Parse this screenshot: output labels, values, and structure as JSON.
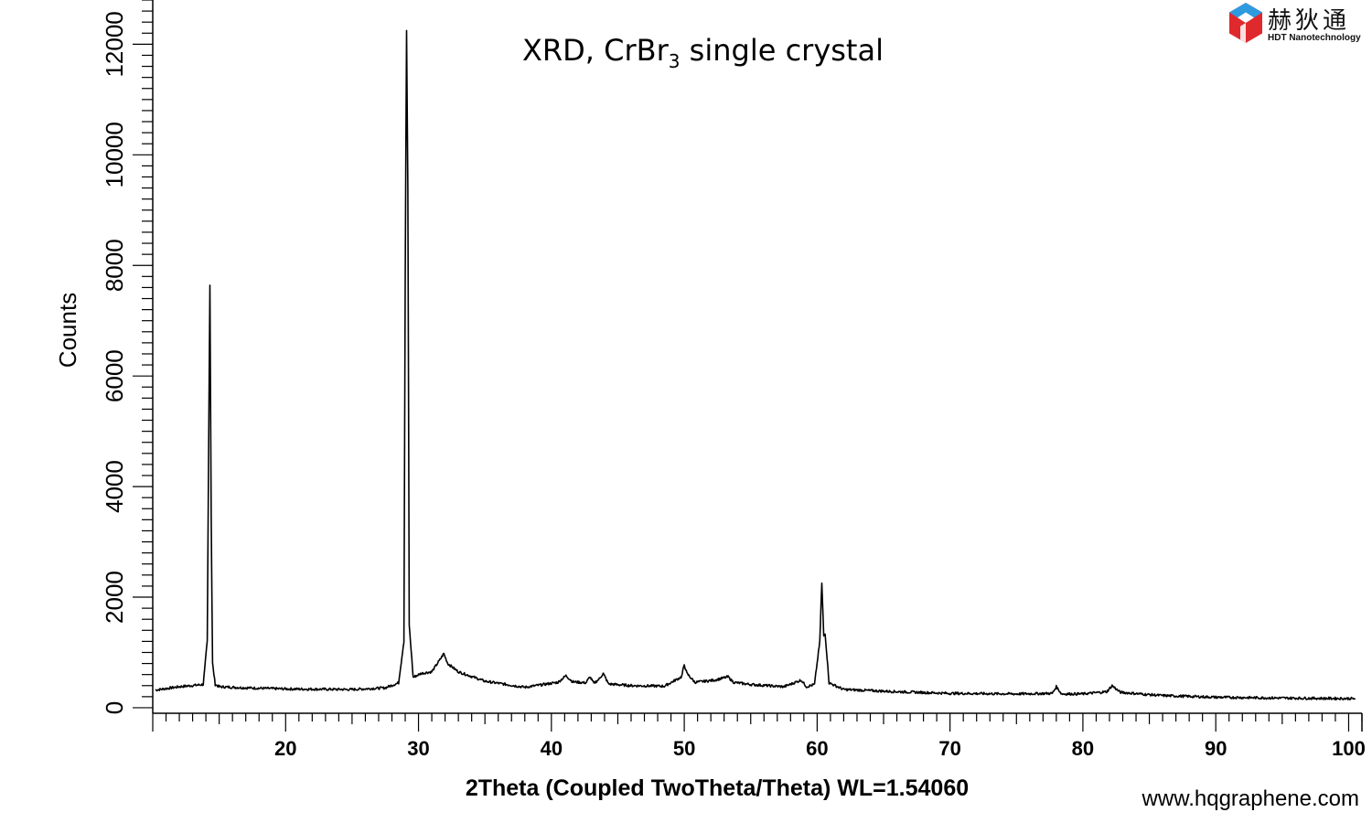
{
  "chart_data": {
    "type": "line",
    "title_main": "XRD, CrBr",
    "title_sub": "3",
    "title_rest": " single crystal",
    "xlabel": "2Theta (Coupled TwoTheta/Theta) WL=1.54060",
    "ylabel": "Counts",
    "xlim": [
      10,
      101
    ],
    "ylim": [
      -100,
      12800
    ],
    "x_ticks": [
      20,
      30,
      40,
      50,
      60,
      70,
      80,
      90,
      100
    ],
    "y_ticks": [
      0,
      2000,
      4000,
      6000,
      8000,
      10000,
      12000
    ],
    "series": [
      {
        "x": [
          10.2,
          12,
          13.8,
          14.1,
          14.3,
          14.4,
          14.5,
          14.7,
          15.0,
          17,
          20,
          25,
          27.5,
          28.5,
          28.9,
          29.0,
          29.1,
          29.2,
          29.3,
          29.6,
          30.2,
          31.0,
          31.7,
          31.9,
          32.2,
          33.0,
          35,
          38,
          40.5,
          41.1,
          41.6,
          42.6,
          42.9,
          43.2,
          43.6,
          43.9,
          44.3,
          46,
          48.5,
          49.8,
          50.0,
          50.2,
          50.8,
          52.3,
          53.3,
          53.7,
          55,
          57.5,
          58.8,
          59.2,
          59.8,
          60.2,
          60.35,
          60.5,
          60.6,
          60.9,
          62,
          66,
          70,
          75,
          77.7,
          78.0,
          78.4,
          80,
          81.8,
          82.2,
          82.8,
          84.8,
          86,
          90,
          95,
          100.5
        ],
        "y": [
          320,
          380,
          420,
          1200,
          7650,
          3500,
          800,
          420,
          380,
          360,
          340,
          330,
          360,
          450,
          1200,
          7700,
          12250,
          9400,
          1500,
          550,
          620,
          650,
          900,
          980,
          800,
          650,
          480,
          370,
          460,
          580,
          470,
          450,
          560,
          440,
          520,
          620,
          430,
          400,
          390,
          560,
          780,
          620,
          460,
          500,
          560,
          460,
          420,
          380,
          500,
          380,
          420,
          1200,
          2250,
          1300,
          1350,
          450,
          330,
          290,
          260,
          250,
          260,
          380,
          250,
          250,
          290,
          400,
          280,
          240,
          220,
          190,
          175,
          165
        ]
      }
    ]
  },
  "watermark": "www.hqgraphene.com",
  "logo": {
    "chinese_name": "赫狄通",
    "english_name": "HDT Nanotechnology",
    "colors": {
      "red": "#e0292d",
      "blue": "#2e9be0",
      "white": "#ffffff"
    }
  }
}
